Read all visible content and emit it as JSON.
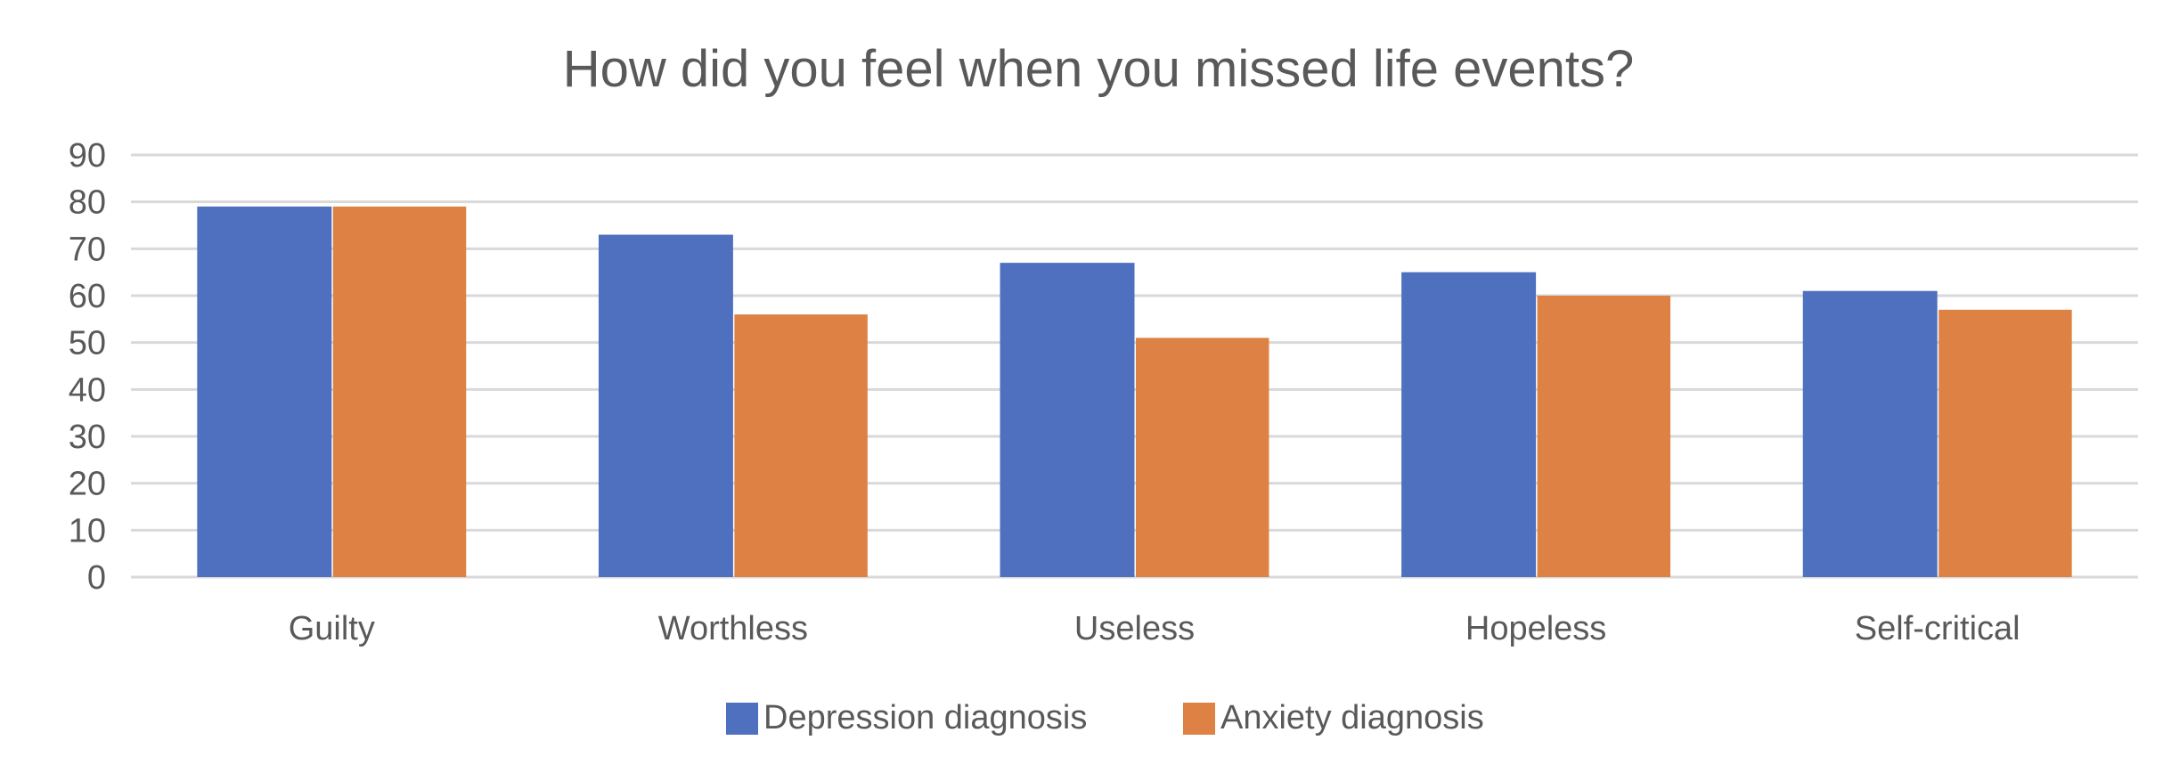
{
  "colors": {
    "depression": "#4E70BE",
    "anxiety": "#DD8244",
    "grid": "#D9D9D9",
    "text": "#595959",
    "background": "#FFFFFF"
  },
  "chart_data": {
    "type": "bar",
    "title": "How did you feel when you missed life events?",
    "xlabel": "",
    "ylabel": "",
    "categories": [
      "Guilty",
      "Worthless",
      "Useless",
      "Hopeless",
      "Self-critical"
    ],
    "series": [
      {
        "name": "Depression diagnosis",
        "color": "#4E70BE",
        "values": [
          79,
          73,
          67,
          65,
          61
        ]
      },
      {
        "name": "Anxiety diagnosis",
        "color": "#DD8244",
        "values": [
          79,
          56,
          51,
          60,
          57
        ]
      }
    ],
    "ylim": [
      0,
      90
    ],
    "yticks": [
      0,
      10,
      20,
      30,
      40,
      50,
      60,
      70,
      80,
      90
    ],
    "grid": true,
    "legend": "bottom"
  }
}
